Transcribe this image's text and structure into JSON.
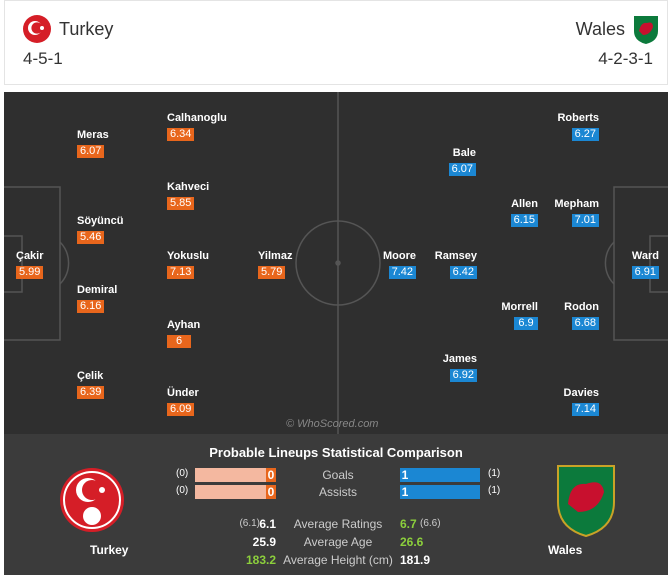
{
  "header": {
    "home": {
      "name": "Turkey",
      "formation": "4-5-1"
    },
    "away": {
      "name": "Wales",
      "formation": "4-2-3-1"
    }
  },
  "pitch": {
    "home_players": [
      {
        "name": "Çakir",
        "rating": "5.99"
      },
      {
        "name": "Meras",
        "rating": "6.07"
      },
      {
        "name": "Söyüncü",
        "rating": "5.46"
      },
      {
        "name": "Demiral",
        "rating": "6.16"
      },
      {
        "name": "Çelik",
        "rating": "6.39"
      },
      {
        "name": "Calhanoglu",
        "rating": "6.34"
      },
      {
        "name": "Kahveci",
        "rating": "5.85"
      },
      {
        "name": "Yokuslu",
        "rating": "7.13"
      },
      {
        "name": "Ayhan",
        "rating": "6"
      },
      {
        "name": "Ünder",
        "rating": "6.09"
      },
      {
        "name": "Yilmaz",
        "rating": "5.79"
      }
    ],
    "away_players": [
      {
        "name": "Roberts",
        "rating": "6.27"
      },
      {
        "name": "Bale",
        "rating": "6.07"
      },
      {
        "name": "Allen",
        "rating": "6.15"
      },
      {
        "name": "Mepham",
        "rating": "7.01"
      },
      {
        "name": "Ward",
        "rating": "6.91"
      },
      {
        "name": "Moore",
        "rating": "7.42"
      },
      {
        "name": "Ramsey",
        "rating": "6.42"
      },
      {
        "name": "Morrell",
        "rating": "6.9"
      },
      {
        "name": "Rodon",
        "rating": "6.68"
      },
      {
        "name": "James",
        "rating": "6.92"
      },
      {
        "name": "Davies",
        "rating": "7.14"
      }
    ],
    "watermark": "© WhoScored.com"
  },
  "comparison": {
    "title": "Probable Lineups Statistical Comparison",
    "home_team": "Turkey",
    "away_team": "Wales",
    "bar_rows": [
      {
        "label": "Goals",
        "home_paren": "(0)",
        "home": "0",
        "away": "1",
        "away_paren": "(1)"
      },
      {
        "label": "Assists",
        "home_paren": "(0)",
        "home": "0",
        "away": "1",
        "away_paren": "(1)"
      }
    ],
    "stat_rows": [
      {
        "label": "Average Ratings",
        "home_paren": "(6.1)",
        "home": "6.1",
        "away": "6.7",
        "away_paren": "(6.6)"
      },
      {
        "label": "Average Age",
        "home": "25.9",
        "away": "26.6"
      },
      {
        "label": "Average Height (cm)",
        "home": "183.2",
        "away": "181.9"
      }
    ]
  }
}
